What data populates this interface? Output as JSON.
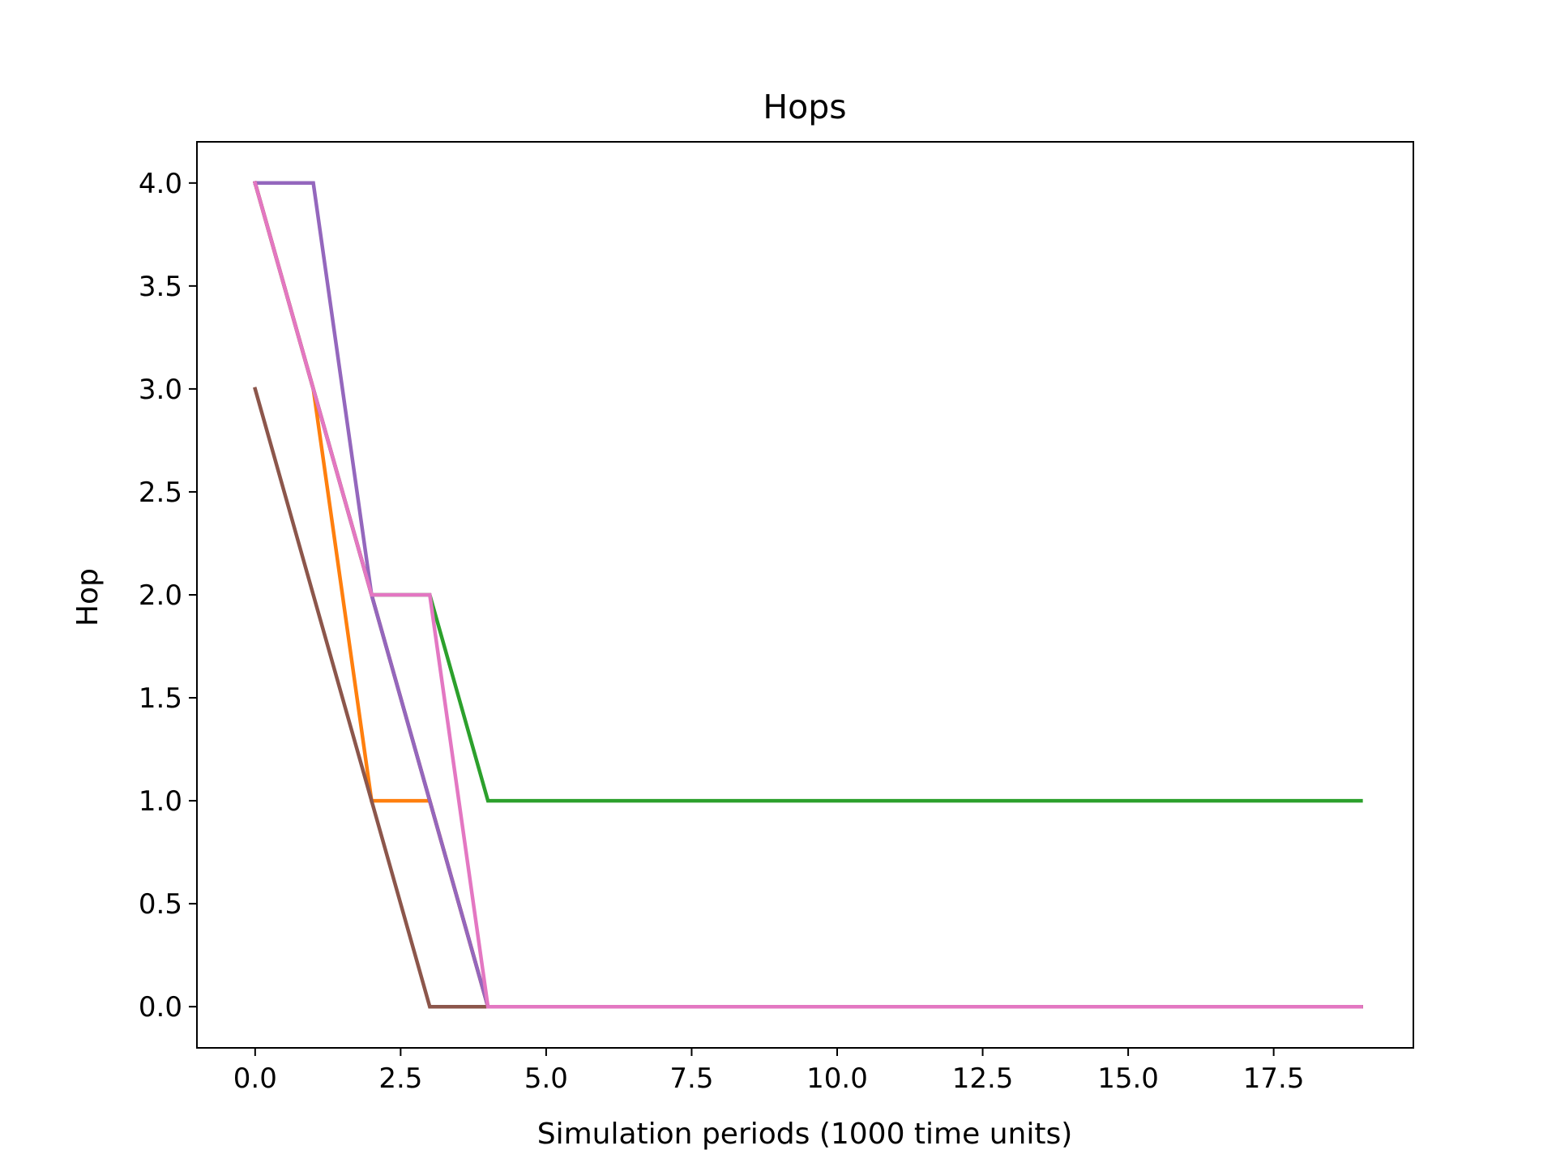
{
  "chart_data": {
    "type": "line",
    "title": "Hops",
    "xlabel": "Simulation periods (1000 time units)",
    "ylabel": "Hop",
    "xlim": [
      -1,
      19.9
    ],
    "ylim": [
      -0.2,
      4.2
    ],
    "xticks": [
      0.0,
      2.5,
      5.0,
      7.5,
      10.0,
      12.5,
      15.0,
      17.5
    ],
    "xtick_labels": [
      "0.0",
      "2.5",
      "5.0",
      "7.5",
      "10.0",
      "12.5",
      "15.0",
      "17.5"
    ],
    "yticks": [
      0.0,
      0.5,
      1.0,
      1.5,
      2.0,
      2.5,
      3.0,
      3.5,
      4.0
    ],
    "ytick_labels": [
      "0.0",
      "0.5",
      "1.0",
      "1.5",
      "2.0",
      "2.5",
      "3.0",
      "3.5",
      "4.0"
    ],
    "grid": false,
    "x": [
      0,
      1,
      2,
      3,
      4,
      5,
      6,
      7,
      8,
      9,
      10,
      11,
      12,
      13,
      14,
      15,
      16,
      17,
      18,
      19
    ],
    "series": [
      {
        "color": "#1f77b4",
        "values": [
          4,
          3,
          2,
          1,
          0,
          0,
          0,
          0,
          0,
          0,
          0,
          0,
          0,
          0,
          0,
          0,
          0,
          0,
          0,
          0
        ]
      },
      {
        "color": "#ff7f0e",
        "values": [
          4,
          3,
          1,
          1,
          0,
          0,
          0,
          0,
          0,
          0,
          0,
          0,
          0,
          0,
          0,
          0,
          0,
          0,
          0,
          0
        ]
      },
      {
        "color": "#2ca02c",
        "values": [
          4,
          3,
          2,
          2,
          1,
          1,
          1,
          1,
          1,
          1,
          1,
          1,
          1,
          1,
          1,
          1,
          1,
          1,
          1,
          1
        ]
      },
      {
        "color": "#d62728",
        "values": [
          4,
          3,
          2,
          1,
          0,
          0,
          0,
          0,
          0,
          0,
          0,
          0,
          0,
          0,
          0,
          0,
          0,
          0,
          0,
          0
        ]
      },
      {
        "color": "#9467bd",
        "values": [
          4,
          4,
          2,
          1,
          0,
          0,
          0,
          0,
          0,
          0,
          0,
          0,
          0,
          0,
          0,
          0,
          0,
          0,
          0,
          0
        ]
      },
      {
        "color": "#8c564b",
        "values": [
          3,
          2,
          1,
          0,
          0,
          0,
          0,
          0,
          0,
          0,
          0,
          0,
          0,
          0,
          0,
          0,
          0,
          0,
          0,
          0
        ]
      },
      {
        "color": "#e377c2",
        "values": [
          4,
          3,
          2,
          2,
          0,
          0,
          0,
          0,
          0,
          0,
          0,
          0,
          0,
          0,
          0,
          0,
          0,
          0,
          0,
          0
        ]
      }
    ]
  }
}
